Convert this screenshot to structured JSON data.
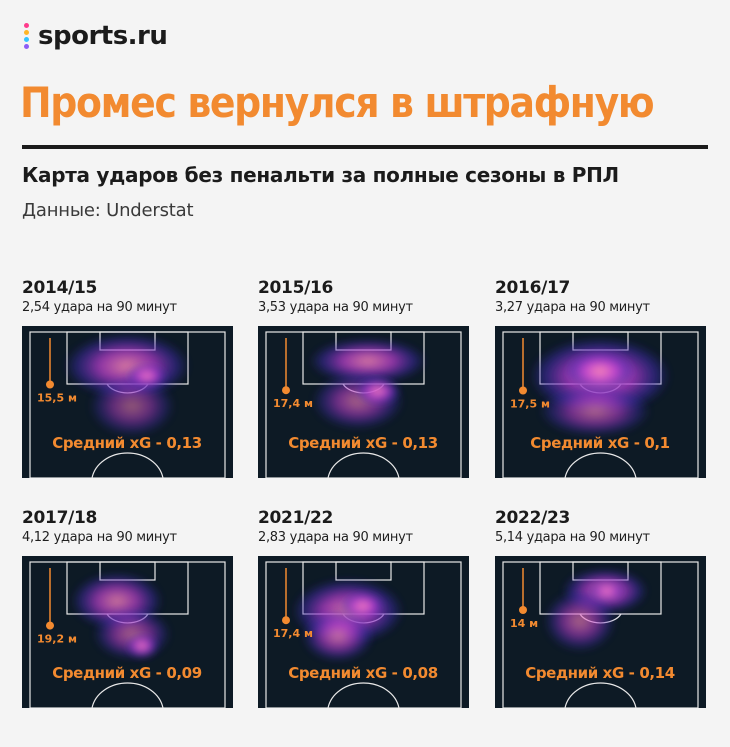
{
  "brand": {
    "logo_text": "sports.ru",
    "dot_colors": [
      "#ff3b8b",
      "#ffb627",
      "#34c3ff",
      "#8b5cf6"
    ]
  },
  "title": "Промес вернулся в штрафную",
  "subtitle": "Карта ударов без пенальти за полные сезоны в РПЛ",
  "source": "Данные: Understat",
  "colors": {
    "accent": "#f28a30",
    "pitch": "#0d1a25",
    "heat_outer": "#3b2bb0",
    "heat_mid": "#c23fd6",
    "heat_core": "#ff8fb4"
  },
  "panels": [
    {
      "season": "2014/15",
      "rate": "2,54 удара на 90 минут",
      "distance": "15,5 м",
      "distance_value": 15.5,
      "xg": "Средний xG - 0,13"
    },
    {
      "season": "2015/16",
      "rate": "3,53 удара на 90 минут",
      "distance": "17,4 м",
      "distance_value": 17.4,
      "xg": "Средний xG - 0,13"
    },
    {
      "season": "2016/17",
      "rate": "3,27 удара на 90 минут",
      "distance": "17,5 м",
      "distance_value": 17.5,
      "xg": "Средний xG - 0,1"
    },
    {
      "season": "2017/18",
      "rate": "4,12 удара на 90 минут",
      "distance": "19,2 м",
      "distance_value": 19.2,
      "xg": "Средний xG - 0,09"
    },
    {
      "season": "2021/22",
      "rate": "2,83 удара на 90 минут",
      "distance": "17,4 м",
      "distance_value": 17.4,
      "xg": "Средний xG - 0,08"
    },
    {
      "season": "2022/23",
      "rate": "5,14 удара на 90 минут",
      "distance": "14 м",
      "distance_value": 14,
      "xg": "Средний xG - 0,14"
    }
  ]
}
